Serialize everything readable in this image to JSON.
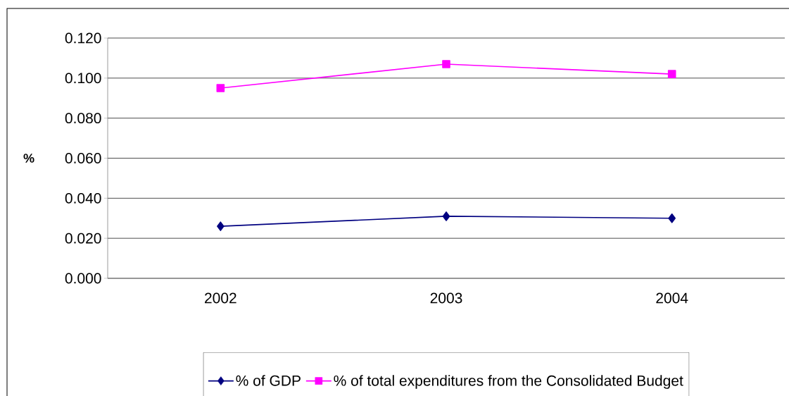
{
  "chart_data": {
    "type": "line",
    "ylabel": "%",
    "categories": [
      "2002",
      "2003",
      "2004"
    ],
    "series": [
      {
        "name": "% of GDP",
        "color": "#000080",
        "marker": "diamond",
        "values": [
          0.026,
          0.031,
          0.03
        ]
      },
      {
        "name": "% of total expenditures from the Consolidated Budget",
        "color": "#ff00ff",
        "marker": "square",
        "values": [
          0.095,
          0.107,
          0.102
        ]
      }
    ],
    "ylim": [
      0,
      0.12
    ],
    "yticks": [
      {
        "value": 0,
        "label": "0.000"
      },
      {
        "value": 0.02,
        "label": "0.020"
      },
      {
        "value": 0.04,
        "label": "0.040"
      },
      {
        "value": 0.06,
        "label": "0.060"
      },
      {
        "value": 0.08,
        "label": "0.080"
      },
      {
        "value": 0.1,
        "label": "0.100"
      },
      {
        "value": 0.12,
        "label": "0.120"
      }
    ],
    "grid": "y",
    "legend": "bottom"
  }
}
